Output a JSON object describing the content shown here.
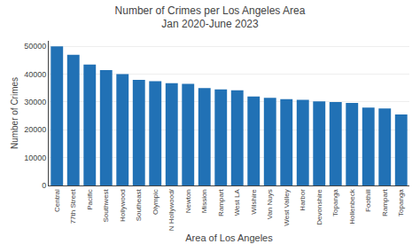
{
  "chart_data": {
    "type": "bar",
    "title": "Number of Crimes per Los Angeles Area",
    "subtitle": "Jan 2020-June 2023",
    "xlabel": "Area of Los Angeles",
    "ylabel": "Number of Crimes",
    "categories": [
      "Central",
      "77th Street",
      "Pacific",
      "Southwest",
      "Hollywood",
      "Southeast",
      "Olympic",
      "N Hollywood/",
      "Newton",
      "Mission",
      "Rampart",
      "West LA",
      "Wilshire",
      "Van Nuys",
      "West Valley",
      "Harbor",
      "Devonshire",
      "Topanga",
      "Hollenbeck",
      "Foothill",
      "Rampart",
      "Topanga"
    ],
    "values": [
      50000,
      47000,
      43500,
      41500,
      40000,
      38000,
      37500,
      36800,
      36500,
      35000,
      34500,
      34200,
      32000,
      31500,
      31000,
      30800,
      30200,
      30000,
      29700,
      28000,
      27700,
      25500
    ],
    "color": "#2171b5",
    "ylim": [
      0,
      52000
    ],
    "yticks": [
      0,
      10000,
      20000,
      30000,
      40000,
      50000
    ],
    "grid": true
  }
}
